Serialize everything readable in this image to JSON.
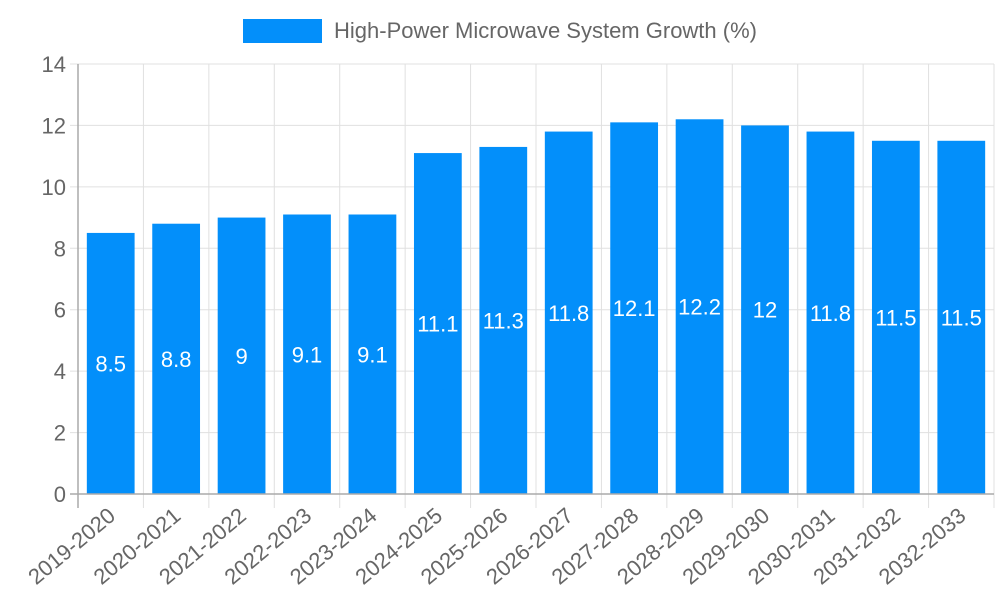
{
  "legend": {
    "label": "High-Power Microwave System Growth (%)",
    "color": "#038ffa"
  },
  "chart_data": {
    "type": "bar",
    "title": "",
    "xlabel": "",
    "ylabel": "",
    "categories": [
      "2019-2020",
      "2020-2021",
      "2021-2022",
      "2022-2023",
      "2023-2024",
      "2024-2025",
      "2025-2026",
      "2026-2027",
      "2027-2028",
      "2028-2029",
      "2029-2030",
      "2030-2031",
      "2031-2032",
      "2032-2033"
    ],
    "series": [
      {
        "name": "High-Power Microwave System Growth (%)",
        "color": "#038ffa",
        "values": [
          8.5,
          8.8,
          9,
          9.1,
          9.1,
          11.1,
          11.3,
          11.8,
          12.1,
          12.2,
          12,
          11.8,
          11.5,
          11.5
        ]
      }
    ],
    "ylim": [
      0,
      14
    ],
    "yticks": [
      0,
      2,
      4,
      6,
      8,
      10,
      12,
      14
    ],
    "grid": true,
    "legend_position": "top",
    "data_labels": true
  }
}
